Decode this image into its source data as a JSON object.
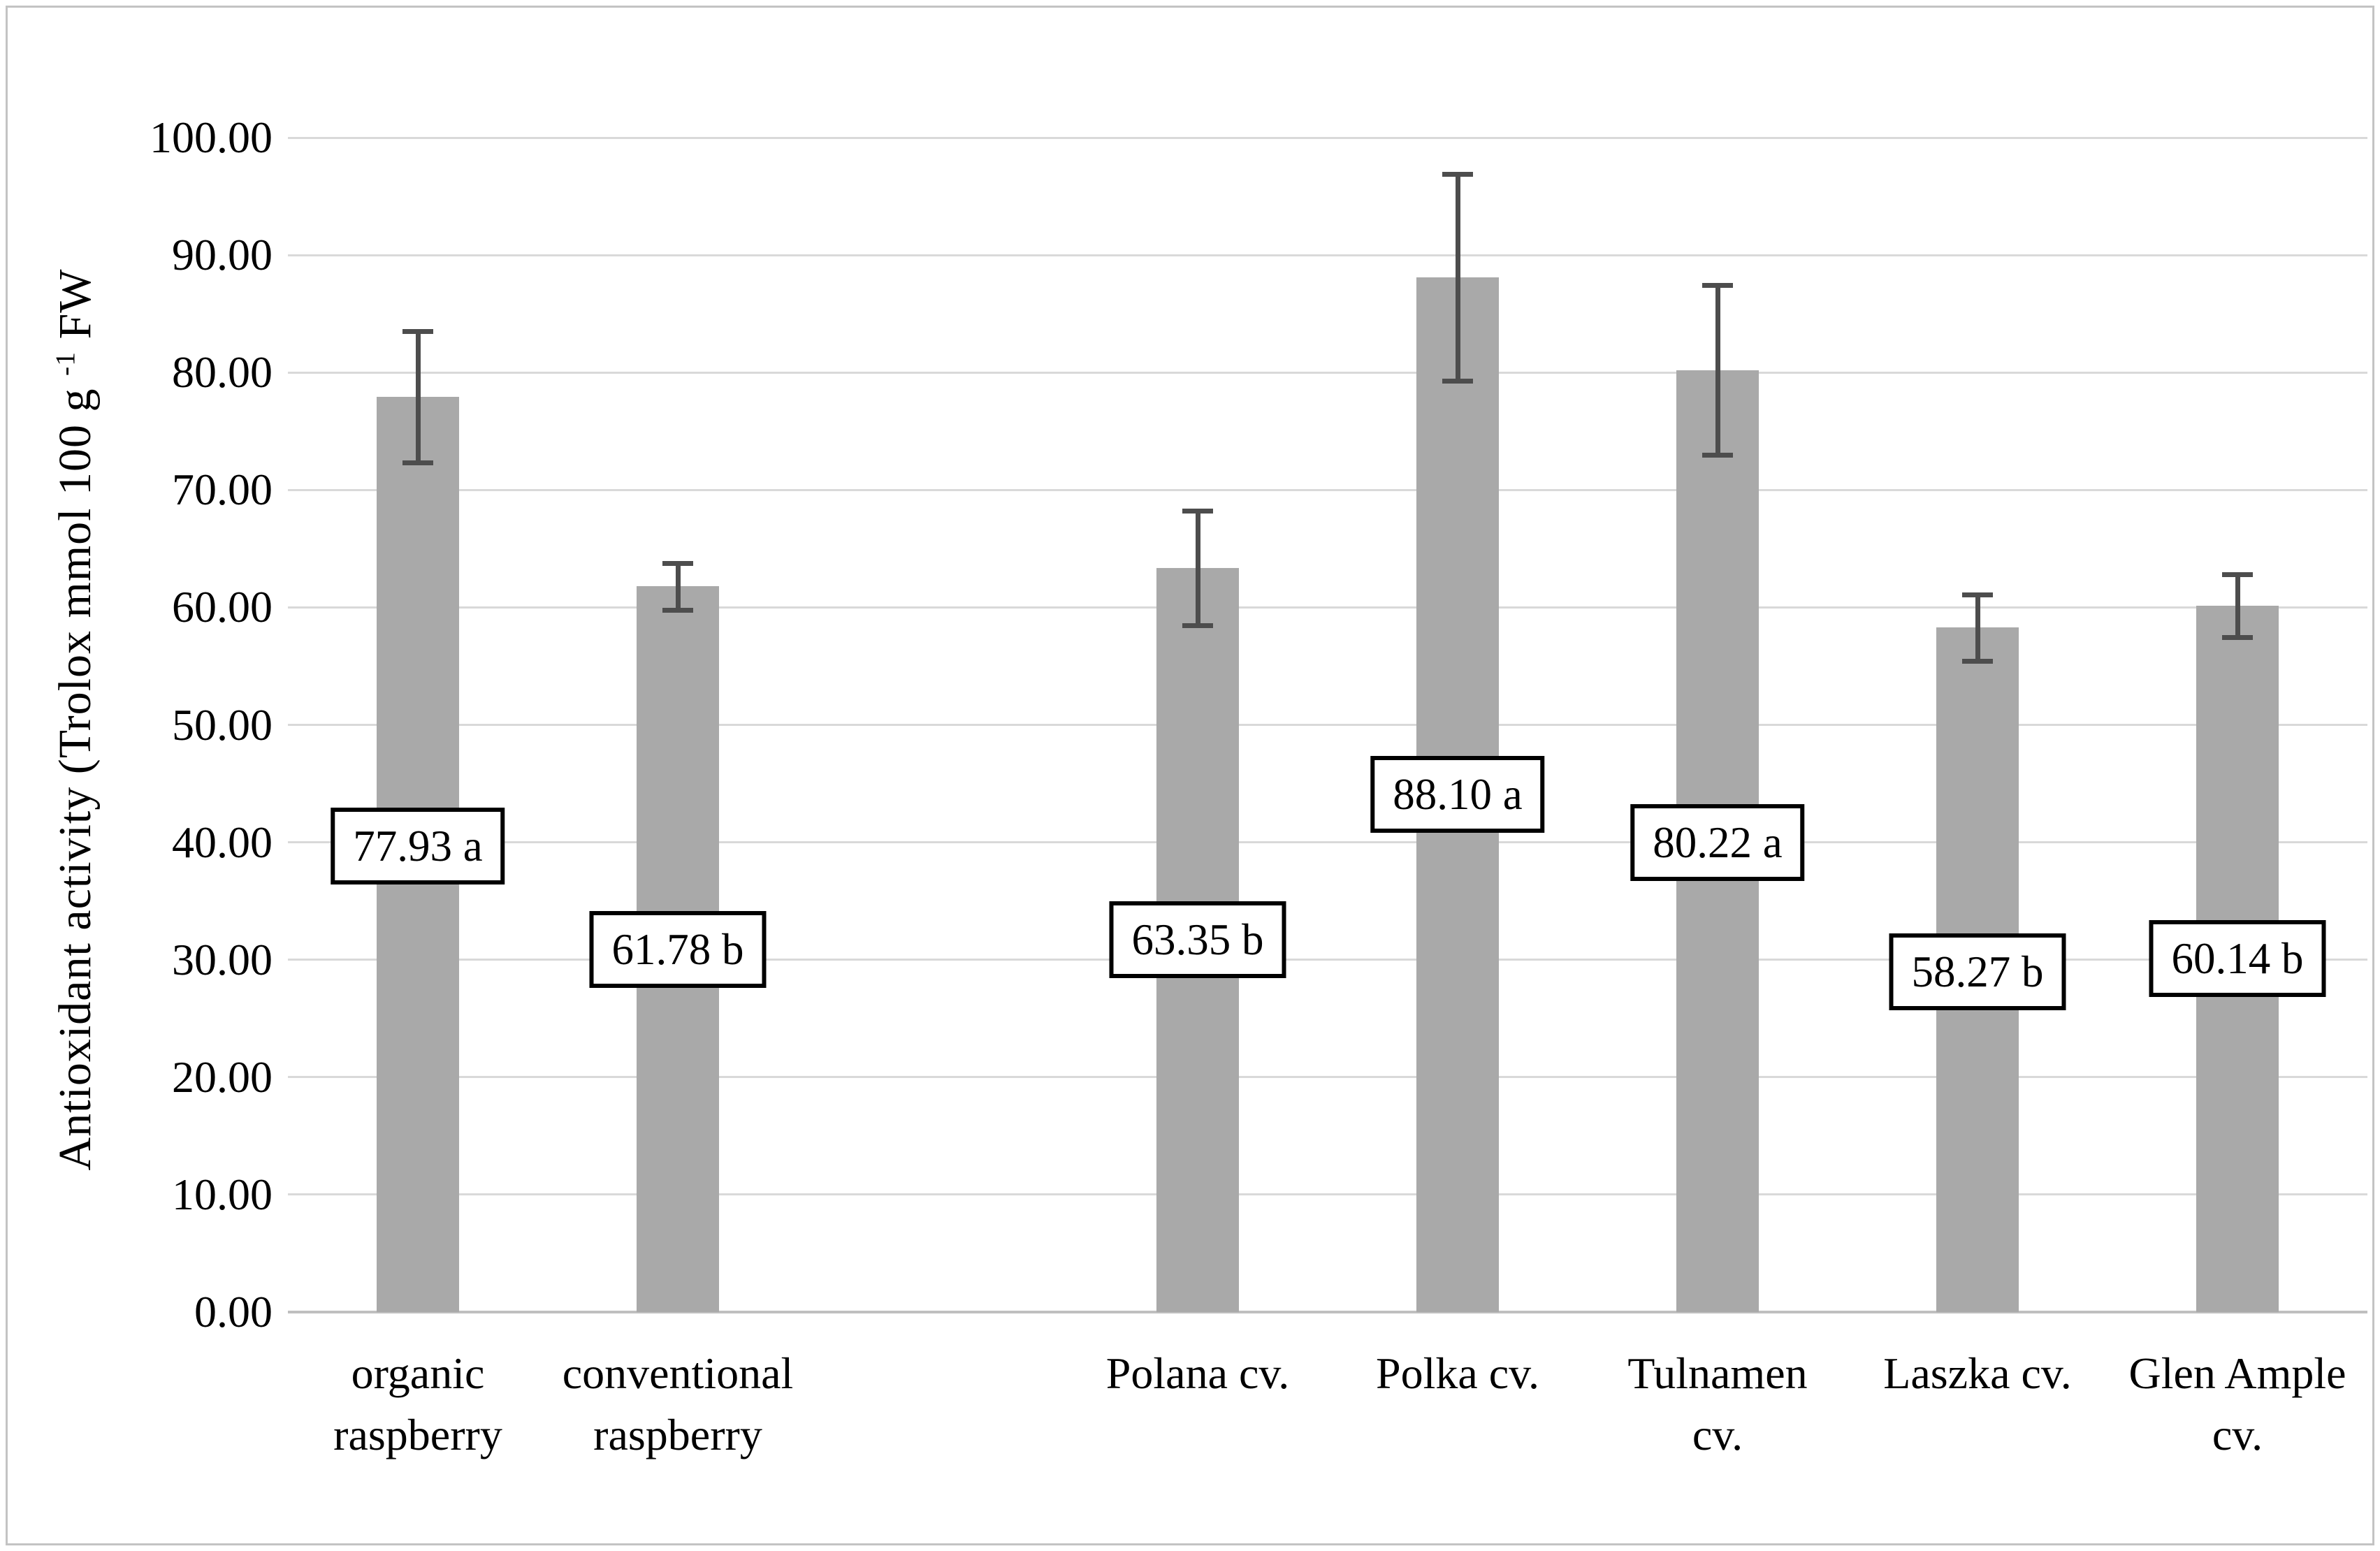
{
  "figure": {
    "background": "#ffffff",
    "border_color": "#c3c3c3"
  },
  "chart_data": {
    "type": "bar",
    "title": "",
    "ylabel_prefix": "Antioxidant activity (Trolox mmol 100 g ",
    "ylabel_sup": "-1",
    "ylabel_suffix": " FW",
    "xlabel": "",
    "ylim": [
      0,
      100
    ],
    "ytick_step": 10,
    "ytick_decimals": 2,
    "grid": true,
    "legend": "none",
    "bar_color": "#a9a9a9",
    "error_bar_color": "#4d4d4d",
    "gridline_color": "#d9d9d9",
    "categories": [
      "organic\nraspberry",
      "conventional\nraspberry",
      "",
      "Polana cv.",
      "Polka cv.",
      "Tulnamen\ncv.",
      "Laszka cv.",
      "Glen Ample\ncv."
    ],
    "series": [
      {
        "name": "Antioxidant activity",
        "values": [
          77.93,
          61.78,
          null,
          63.35,
          88.1,
          80.22,
          58.27,
          60.14
        ]
      }
    ],
    "error_plus_minus": [
      5.6,
      2.0,
      null,
      4.9,
      8.8,
      7.2,
      2.8,
      2.7
    ],
    "data_labels": [
      "77.93 a",
      "61.78 b",
      null,
      "63.35 b",
      "88.10 a",
      "80.22 a",
      "58.27 b",
      "60.14 b"
    ],
    "data_label_center_value": [
      39.7,
      30.9,
      null,
      31.7,
      44.1,
      40.0,
      29.0,
      30.1
    ],
    "significance_letters": [
      "a",
      "b",
      null,
      "b",
      "a",
      "a",
      "b",
      "b"
    ]
  }
}
